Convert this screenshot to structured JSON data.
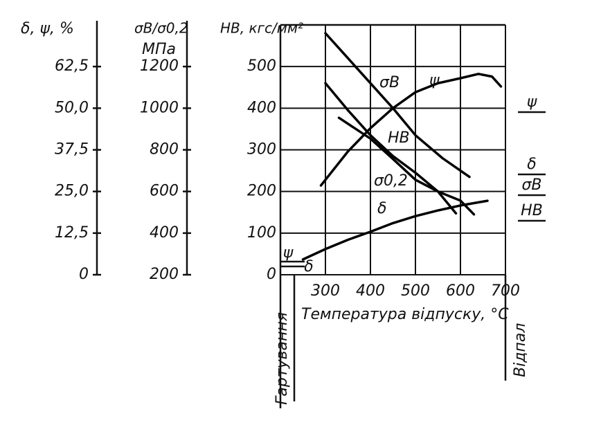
{
  "chart_data": {
    "type": "line",
    "y3_label": "δ, ψ, %",
    "y2_label": "σB/σ0,2",
    "y2_unit": "МПа",
    "y_label": "HB, кгс/мм²",
    "x_label": "Температура відпуску, °C",
    "left_zone_label": "Гартування",
    "right_zone_label": "Відпал",
    "quench_labels": [
      "ψ",
      "δ"
    ],
    "xlim": [
      200,
      700
    ],
    "xticks": [
      300,
      400,
      500,
      600,
      700
    ],
    "ylim": [
      0,
      600
    ],
    "yticks": [
      0,
      100,
      200,
      300,
      400,
      500
    ],
    "y2lim": [
      200,
      1400
    ],
    "y2ticks": [
      200,
      400,
      600,
      800,
      1000,
      1200
    ],
    "y3lim": [
      0,
      75
    ],
    "y3ticks": [
      0,
      {
        "value": 12.5,
        "label": "12,5"
      },
      {
        "value": 25,
        "label": "25,0"
      },
      {
        "value": 37.5,
        "label": "37,5"
      },
      {
        "value": 50,
        "label": "50,0"
      },
      {
        "value": 62.5,
        "label": "62,5"
      }
    ],
    "grid": true,
    "series": [
      {
        "name": "σB",
        "color": "#000000",
        "axis": "y2",
        "x": [
          300,
          350,
          400,
          450,
          500,
          560,
          620
        ],
        "values": [
          1360,
          1240,
          1120,
          1000,
          870,
          760,
          670
        ]
      },
      {
        "name": "σ0,2",
        "color": "#000000",
        "axis": "y2",
        "x": [
          300,
          350,
          400,
          450,
          500,
          550,
          590
        ],
        "values": [
          1120,
          990,
          870,
          770,
          690,
          600,
          495
        ]
      },
      {
        "name": "HB",
        "color": "#000000",
        "axis": "y",
        "x": [
          330,
          400,
          450,
          500,
          550,
          600,
          630
        ],
        "values": [
          377,
          327,
          278,
          228,
          200,
          178,
          145
        ]
      },
      {
        "name": "ψ",
        "color": "#000000",
        "axis": "y3",
        "x": [
          290,
          350,
          400,
          450,
          500,
          550,
          600,
          640,
          670,
          690
        ],
        "values": [
          26.8,
          37,
          44,
          50,
          54.8,
          57.5,
          59,
          60.3,
          59.5,
          56.5
        ]
      },
      {
        "name": "δ",
        "color": "#000000",
        "axis": "y3",
        "x": [
          250,
          300,
          350,
          400,
          450,
          500,
          550,
          600,
          660
        ],
        "values": [
          4.6,
          7.7,
          10.5,
          12.9,
          15.5,
          17.6,
          19.3,
          20.8,
          22.2
        ]
      }
    ]
  }
}
